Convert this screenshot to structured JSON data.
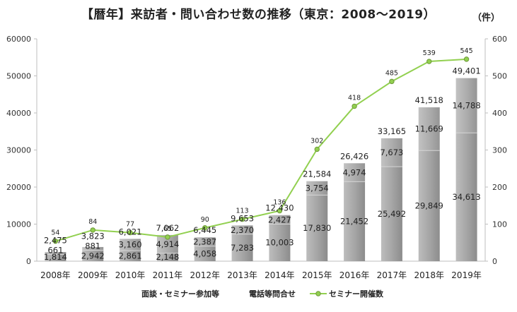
{
  "header": {
    "title": "【暦年】来訪者・問い合わせ数の推移（東京：2008～2019）",
    "unit": "（件）"
  },
  "chart_data": {
    "type": "bar",
    "categories": [
      "2008年",
      "2009年",
      "2010年",
      "2011年",
      "2012年",
      "2013年",
      "2014年",
      "2015年",
      "2016年",
      "2017年",
      "2018年",
      "2019年"
    ],
    "series": [
      {
        "name": "面談・セミナー参加等",
        "values": [
          1814,
          2942,
          2861,
          2148,
          4058,
          7283,
          10003,
          17830,
          21452,
          25492,
          29849,
          34613
        ],
        "labels": [
          "1,814",
          "2,942",
          "2,861",
          "2,148",
          "4,058",
          "7,283",
          "10,003",
          "17,830",
          "21,452",
          "25,492",
          "29,849",
          "34,613"
        ]
      },
      {
        "name": "電話等問合せ",
        "values": [
          661,
          881,
          3160,
          4914,
          2387,
          2370,
          2427,
          3754,
          4974,
          7673,
          11669,
          14788
        ],
        "labels": [
          "661",
          "881",
          "3,160",
          "4,914",
          "2,387",
          "2,370",
          "2,427",
          "3,754",
          "4,974",
          "7,673",
          "11,669",
          "14,788"
        ]
      },
      {
        "name": "セミナー開催数",
        "axis": "right",
        "type": "line",
        "values": [
          54,
          84,
          77,
          65,
          90,
          113,
          136,
          302,
          418,
          485,
          539,
          545
        ],
        "labels": [
          "54",
          "84",
          "77",
          "65",
          "90",
          "113",
          "136",
          "302",
          "418",
          "485",
          "539",
          "545"
        ]
      }
    ],
    "totals": [
      2475,
      3823,
      6021,
      7062,
      6445,
      9653,
      12430,
      21584,
      26426,
      33165,
      41518,
      49401
    ],
    "total_labels": [
      "2,475",
      "3,823",
      "6,021",
      "7,062",
      "6,445",
      "9,653",
      "12,430",
      "21,584",
      "26,426",
      "33,165",
      "41,518",
      "49,401"
    ],
    "ylim": [
      0,
      60000
    ],
    "yticks": [
      "0",
      "10000",
      "20000",
      "30000",
      "40000",
      "50000",
      "60000"
    ],
    "y2lim": [
      0,
      600
    ],
    "y2ticks": [
      "0",
      "100",
      "200",
      "300",
      "400",
      "500",
      "600"
    ],
    "legend_position": "bottom",
    "colors": {
      "bar_bottom": "#a6a6a6",
      "bar_top": "#9a9a9a",
      "line": "#92d050",
      "marker": "#92d050"
    }
  }
}
